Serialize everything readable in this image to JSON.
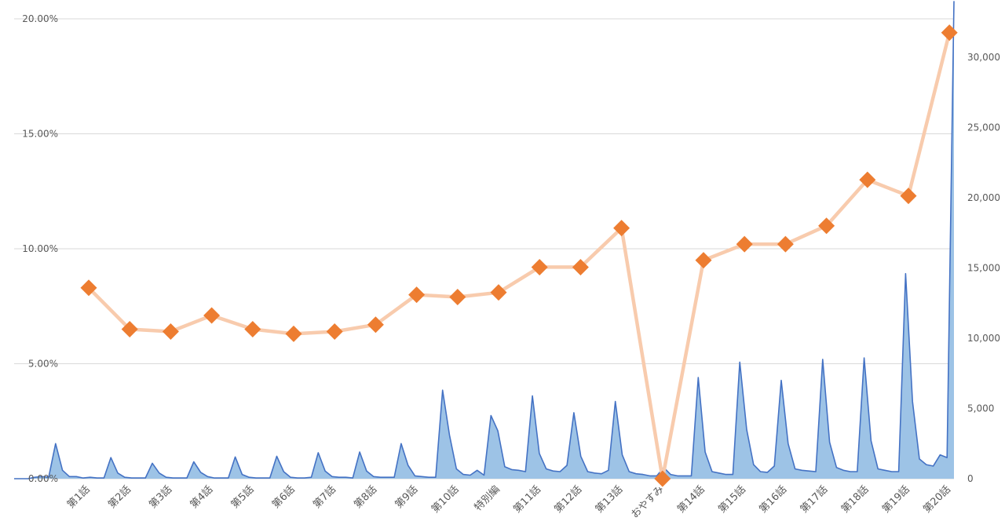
{
  "chart_data": {
    "type": "line+area",
    "title": "",
    "xlabel": "",
    "categories": [
      "第1話",
      "第2話",
      "第3話",
      "第4話",
      "第5話",
      "第6話",
      "第7話",
      "第8話",
      "第9話",
      "第10話",
      "特別編",
      "第11話",
      "第12話",
      "第13話",
      "おやすみ",
      "第14話",
      "第15話",
      "第16話",
      "第17話",
      "第18話",
      "第19話",
      "第20話"
    ],
    "y_left": {
      "ylim": [
        0,
        0.2
      ],
      "ticks": [
        0,
        0.05,
        0.1,
        0.15,
        0.2
      ],
      "tick_labels": [
        "0.00%",
        "5.00%",
        "10.00%",
        "15.00%",
        "20.00%"
      ]
    },
    "y_right": {
      "ylim": [
        0,
        34000
      ],
      "ticks": [
        0,
        5000,
        10000,
        15000,
        20000,
        25000,
        30000
      ],
      "tick_labels": [
        "0",
        "5,000",
        "10,000",
        "15,000",
        "20,000",
        "25,000",
        "30,000"
      ]
    },
    "line_series": {
      "axis": "left",
      "line_color": "#f8cbad",
      "marker_color": "#ed7d31",
      "values": [
        0.083,
        0.065,
        0.064,
        0.071,
        0.065,
        0.063,
        0.064,
        0.067,
        0.08,
        0.079,
        0.081,
        0.092,
        0.092,
        0.109,
        0.0,
        0.095,
        0.102,
        0.102,
        0.11,
        0.13,
        0.123,
        0.194
      ]
    },
    "area_series": {
      "axis": "right",
      "fill_color": "#9dc3e6",
      "line_color": "#4472c4",
      "values": [
        0,
        0,
        0,
        100,
        150,
        100,
        2500,
        600,
        150,
        150,
        50,
        100,
        50,
        50,
        1500,
        400,
        100,
        50,
        50,
        50,
        1100,
        400,
        100,
        50,
        50,
        50,
        1200,
        450,
        150,
        50,
        50,
        50,
        1550,
        300,
        100,
        50,
        50,
        50,
        1600,
        500,
        100,
        50,
        50,
        100,
        1850,
        550,
        150,
        100,
        100,
        50,
        1900,
        550,
        150,
        100,
        100,
        100,
        2500,
        950,
        200,
        150,
        100,
        100,
        6300,
        3100,
        700,
        300,
        250,
        600,
        250,
        4500,
        3400,
        850,
        650,
        600,
        500,
        5900,
        1800,
        700,
        550,
        500,
        950,
        4700,
        1600,
        500,
        400,
        350,
        600,
        5500,
        1700,
        500,
        350,
        300,
        200,
        200,
        800,
        300,
        200,
        200,
        200,
        7200,
        1900,
        500,
        400,
        300,
        300,
        8300,
        3500,
        1000,
        500,
        450,
        900,
        7000,
        2500,
        700,
        600,
        550,
        500,
        8500,
        2600,
        800,
        600,
        500,
        500,
        8600,
        2700,
        700,
        600,
        500,
        500,
        14600,
        5500,
        1400,
        1000,
        900,
        1700,
        1500,
        34000
      ]
    }
  }
}
